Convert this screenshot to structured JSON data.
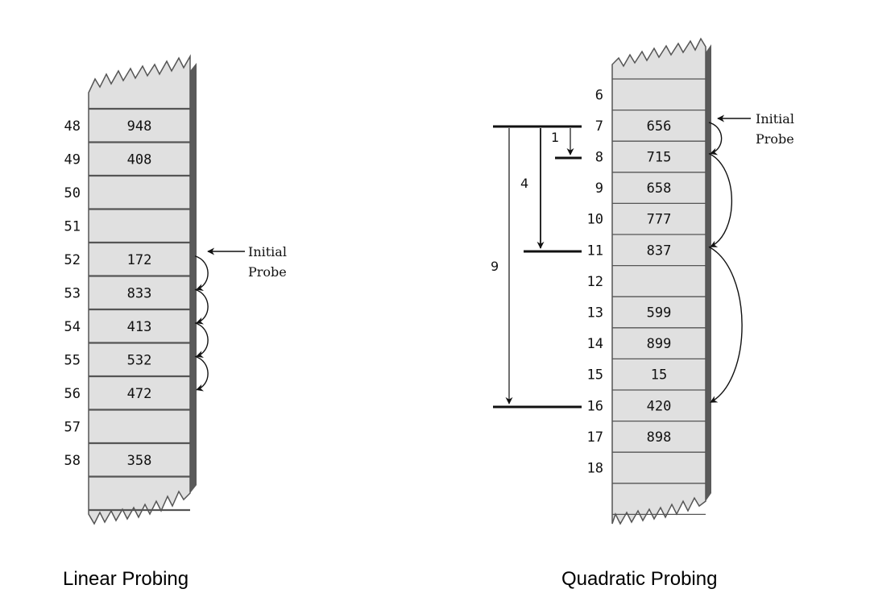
{
  "linear": {
    "caption": "Linear Probing",
    "rows": [
      {
        "index": "48",
        "value": "948"
      },
      {
        "index": "49",
        "value": "408"
      },
      {
        "index": "50",
        "value": ""
      },
      {
        "index": "51",
        "value": ""
      },
      {
        "index": "52",
        "value": "172"
      },
      {
        "index": "53",
        "value": "833"
      },
      {
        "index": "54",
        "value": "413"
      },
      {
        "index": "55",
        "value": "532"
      },
      {
        "index": "56",
        "value": "472"
      },
      {
        "index": "57",
        "value": ""
      },
      {
        "index": "58",
        "value": "358"
      },
      {
        "index": "",
        "value": ""
      }
    ],
    "initial_probe_row": 4,
    "probe_hops": [
      [
        4,
        5
      ],
      [
        5,
        6
      ],
      [
        6,
        7
      ],
      [
        7,
        8
      ]
    ],
    "initial_probe_label": [
      "Initial",
      "Probe"
    ]
  },
  "quadratic": {
    "caption": "Quadratic Probing",
    "rows": [
      {
        "index": "6",
        "value": ""
      },
      {
        "index": "7",
        "value": "656"
      },
      {
        "index": "8",
        "value": "715"
      },
      {
        "index": "9",
        "value": "658"
      },
      {
        "index": "10",
        "value": "777"
      },
      {
        "index": "11",
        "value": "837"
      },
      {
        "index": "12",
        "value": ""
      },
      {
        "index": "13",
        "value": "599"
      },
      {
        "index": "14",
        "value": "899"
      },
      {
        "index": "15",
        "value": "15"
      },
      {
        "index": "16",
        "value": "420"
      },
      {
        "index": "17",
        "value": "898"
      },
      {
        "index": "18",
        "value": ""
      },
      {
        "index": "",
        "value": ""
      }
    ],
    "initial_probe_row": 1,
    "probe_hops": [
      [
        1,
        2
      ],
      [
        2,
        5
      ],
      [
        5,
        10
      ]
    ],
    "initial_probe_label": [
      "Initial",
      "Probe"
    ],
    "step_labels": [
      "1",
      "4",
      "9"
    ]
  },
  "colors": {
    "cell_fill": "#e0e0e0",
    "cell_border": "#555555",
    "shadow": "#5a5a5a",
    "ink": "#111111"
  }
}
